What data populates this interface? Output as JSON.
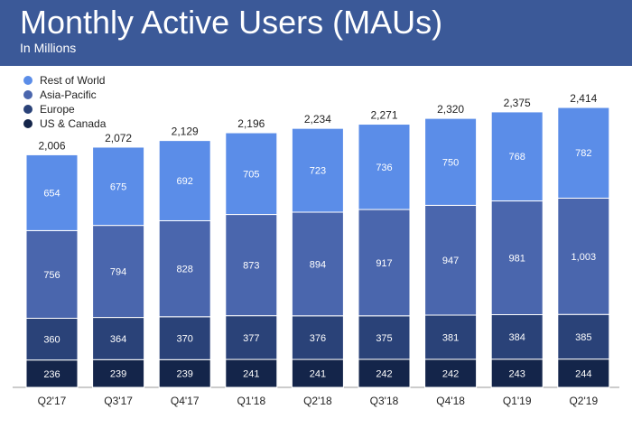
{
  "header": {
    "title": "Monthly Active Users (MAUs)",
    "subtitle": "In Millions"
  },
  "colors": {
    "header_bg": "#3b5998",
    "rest_of_world": "#5b8de8",
    "asia_pacific": "#4a66ad",
    "europe": "#2a4278",
    "us_canada": "#14254a",
    "axis": "#9a9a9a",
    "label_dark": "#222222"
  },
  "chart_data": {
    "type": "bar",
    "stacked": true,
    "title": "Monthly Active Users (MAUs)",
    "subtitle": "In Millions",
    "categories": [
      "Q2'17",
      "Q3'17",
      "Q4'17",
      "Q1'18",
      "Q2'18",
      "Q3'18",
      "Q4'18",
      "Q1'19",
      "Q2'19"
    ],
    "totals": [
      "2,006",
      "2,072",
      "2,129",
      "2,196",
      "2,234",
      "2,271",
      "2,320",
      "2,375",
      "2,414"
    ],
    "series": [
      {
        "name": "US & Canada",
        "color": "#14254a",
        "values": [
          236,
          239,
          239,
          241,
          241,
          242,
          242,
          243,
          244
        ],
        "labels": [
          "236",
          "239",
          "239",
          "241",
          "241",
          "242",
          "242",
          "243",
          "244"
        ]
      },
      {
        "name": "Europe",
        "color": "#2a4278",
        "values": [
          360,
          364,
          370,
          377,
          376,
          375,
          381,
          384,
          385
        ],
        "labels": [
          "360",
          "364",
          "370",
          "377",
          "376",
          "375",
          "381",
          "384",
          "385"
        ]
      },
      {
        "name": "Asia-Pacific",
        "color": "#4a66ad",
        "values": [
          756,
          794,
          828,
          873,
          894,
          917,
          947,
          981,
          1003
        ],
        "labels": [
          "756",
          "794",
          "828",
          "873",
          "894",
          "917",
          "947",
          "981",
          "1,003"
        ]
      },
      {
        "name": "Rest of World",
        "color": "#5b8de8",
        "values": [
          654,
          675,
          692,
          705,
          723,
          736,
          750,
          768,
          782
        ],
        "labels": [
          "654",
          "675",
          "692",
          "705",
          "723",
          "736",
          "750",
          "768",
          "782"
        ]
      }
    ],
    "legend_order": [
      "Rest of World",
      "Asia-Pacific",
      "Europe",
      "US & Canada"
    ],
    "legend_position": "top-left",
    "xlabel": "",
    "ylabel": "",
    "grid": false
  }
}
